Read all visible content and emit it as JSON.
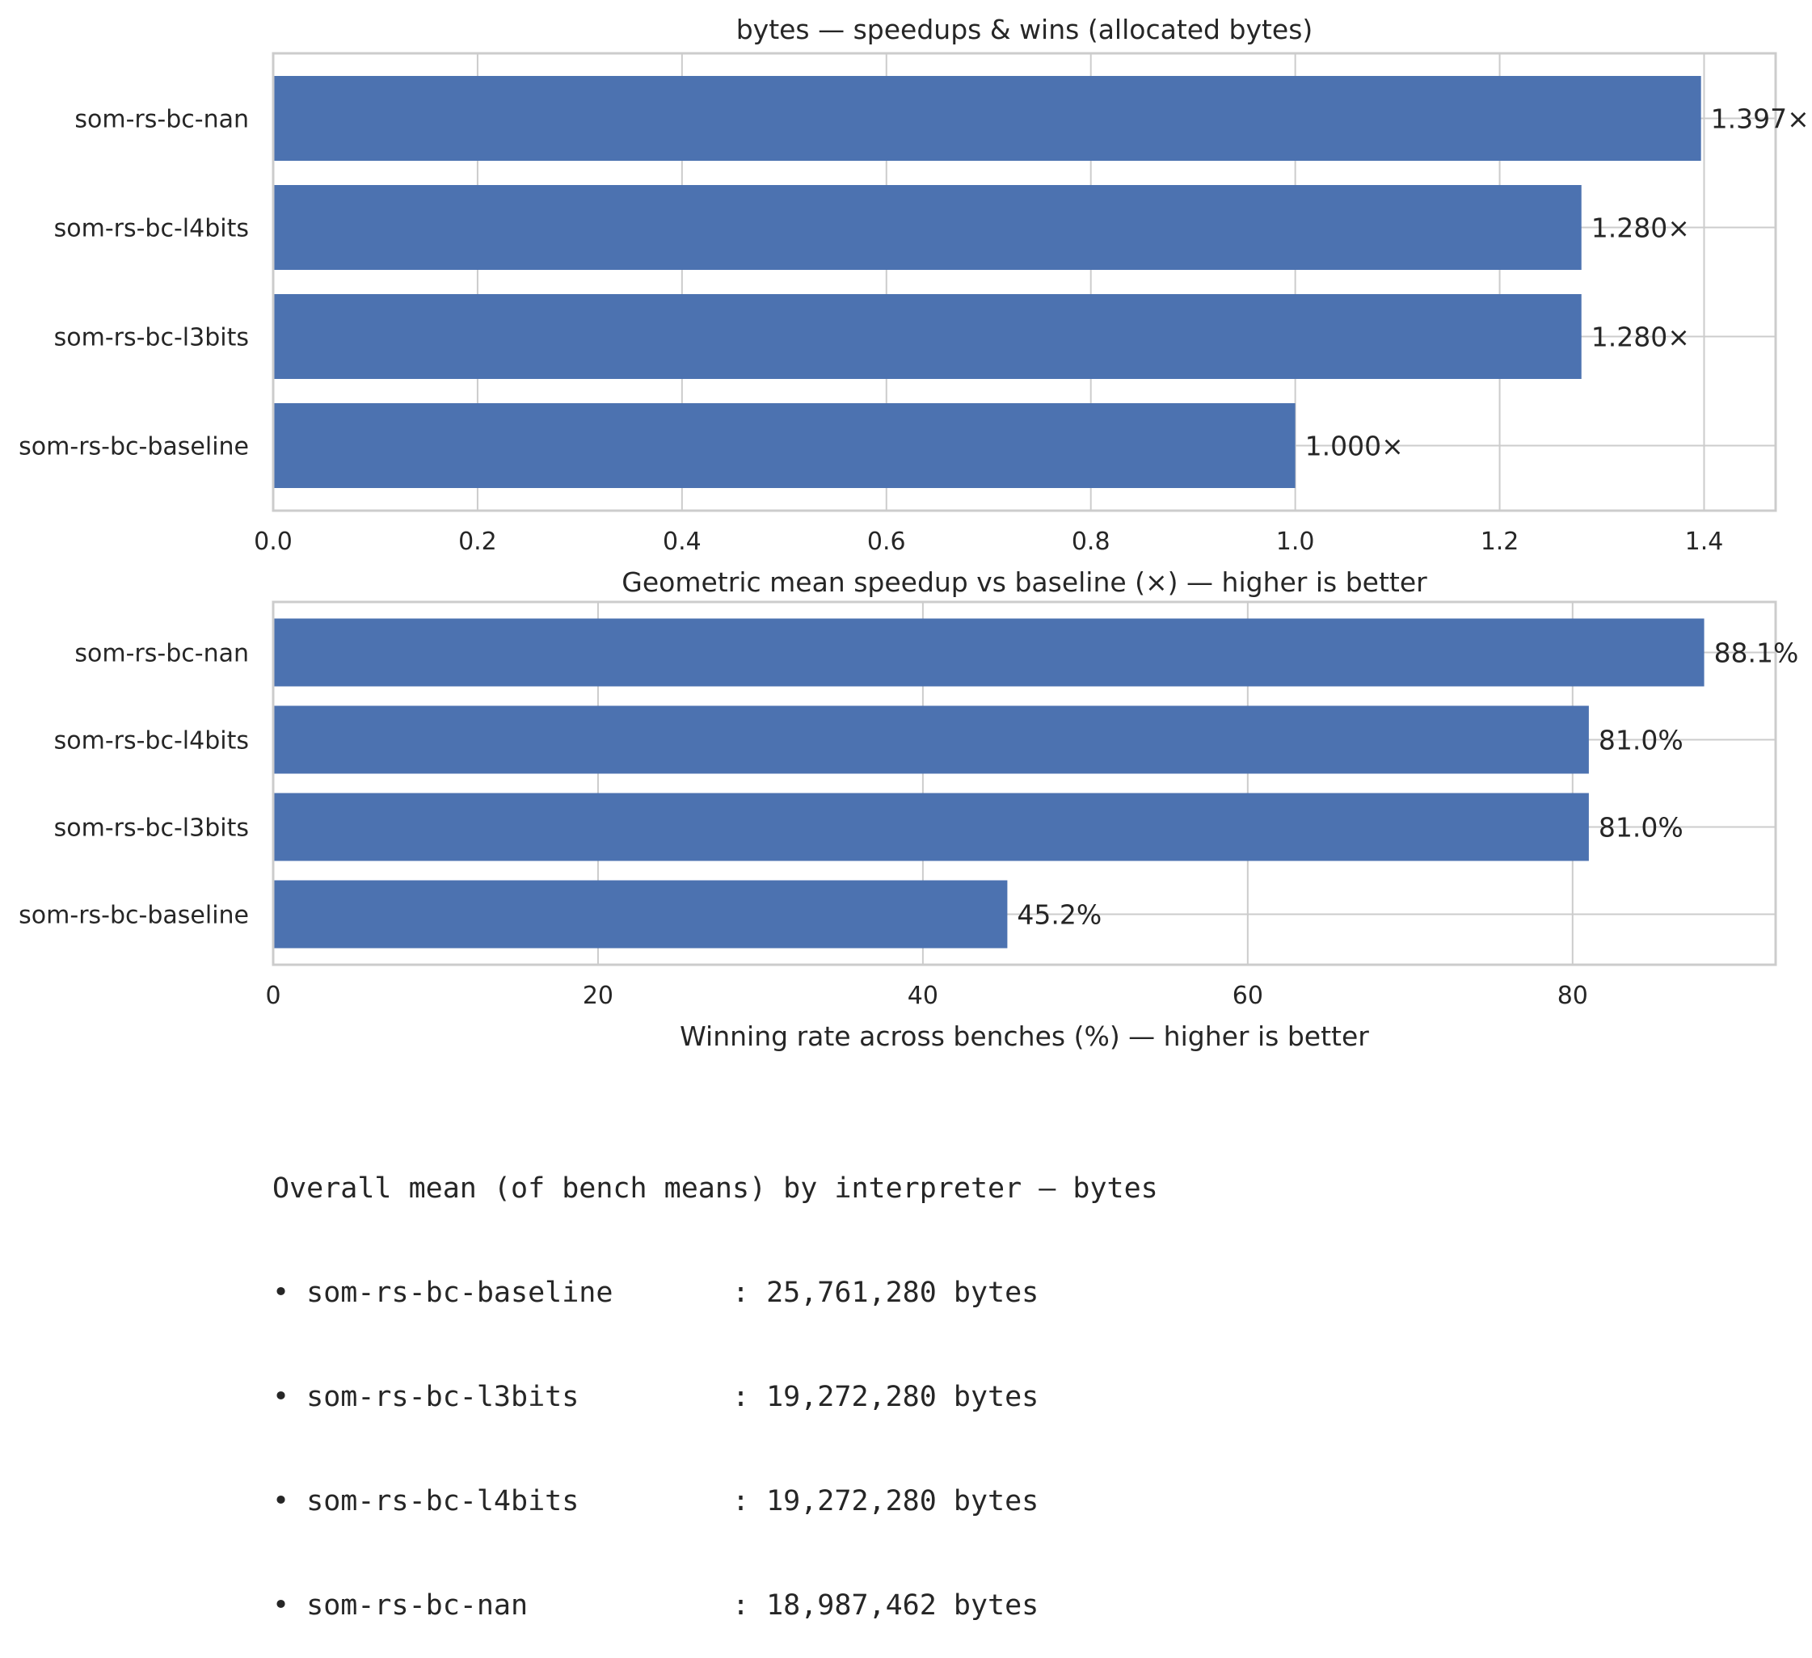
{
  "chart_data": [
    {
      "type": "bar",
      "orientation": "horizontal",
      "title": "bytes — speedups & wins (allocated bytes)",
      "xlabel": "Geometric mean speedup vs baseline (×) — higher is better",
      "categories": [
        "som-rs-bc-nan",
        "som-rs-bc-l4bits",
        "som-rs-bc-l3bits",
        "som-rs-bc-baseline"
      ],
      "values": [
        1.397,
        1.28,
        1.28,
        1.0
      ],
      "data_labels": [
        "1.397×",
        "1.280×",
        "1.280×",
        "1.000×"
      ],
      "xlim": [
        0,
        1.47
      ],
      "xticks": [
        0,
        0.2,
        0.4,
        0.6,
        0.8,
        1.0,
        1.2,
        1.4
      ],
      "xtick_labels": [
        "0.0",
        "0.2",
        "0.4",
        "0.6",
        "0.8",
        "1.0",
        "1.2",
        "1.4"
      ],
      "grid": true,
      "bar_color": "#4c72b0"
    },
    {
      "type": "bar",
      "orientation": "horizontal",
      "title": "",
      "xlabel": "Winning rate across benches (%) — higher is better",
      "categories": [
        "som-rs-bc-nan",
        "som-rs-bc-l4bits",
        "som-rs-bc-l3bits",
        "som-rs-bc-baseline"
      ],
      "values": [
        88.1,
        81.0,
        81.0,
        45.2
      ],
      "data_labels": [
        "88.1%",
        "81.0%",
        "81.0%",
        "45.2%"
      ],
      "xlim": [
        0,
        92.5
      ],
      "xticks": [
        0,
        20,
        40,
        60,
        80
      ],
      "xtick_labels": [
        "0",
        "20",
        "40",
        "60",
        "80"
      ],
      "grid": true,
      "bar_color": "#4c72b0"
    }
  ],
  "summary": {
    "heading": "Overall mean (of bench means) by interpreter — bytes",
    "lines": [
      "• som-rs-bc-baseline       : 25,761,280 bytes",
      "• som-rs-bc-l3bits         : 19,272,280 bytes",
      "• som-rs-bc-l4bits         : 19,272,280 bytes",
      "• som-rs-bc-nan            : 18,987,462 bytes"
    ]
  }
}
